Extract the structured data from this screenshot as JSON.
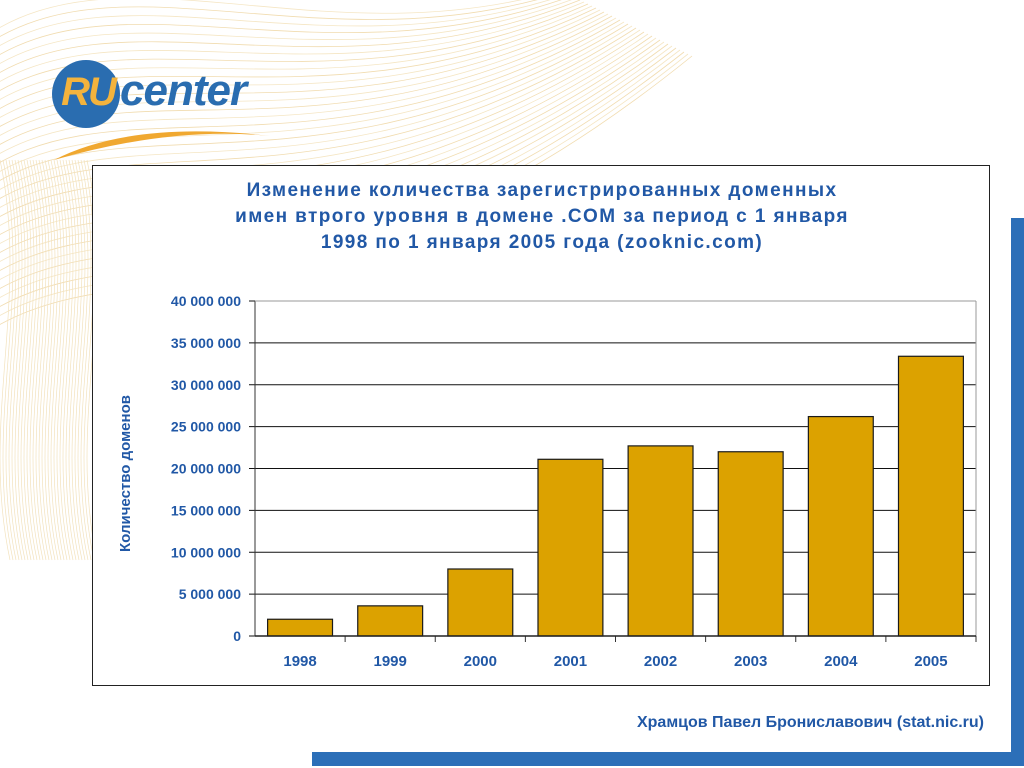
{
  "brand": {
    "logo_ru": "RU",
    "logo_word": "center",
    "colors": {
      "blue": "#2a6db0",
      "orange": "#f3b33d"
    }
  },
  "footer": {
    "author": "Храмцов Павел Брониславович (stat.nic.ru)"
  },
  "chart_data": {
    "type": "bar",
    "title": [
      "Изменение количества зарегистрированных доменных",
      "имен втрого уровня в домене .COM за период с 1 января",
      "1998 по 1 января 2005 года (zooknic.com)"
    ],
    "xlabel": "",
    "ylabel": "Количество доменов",
    "categories": [
      "1998",
      "1999",
      "2000",
      "2001",
      "2002",
      "2003",
      "2004",
      "2005"
    ],
    "values": [
      2000000,
      3600000,
      8000000,
      21100000,
      22700000,
      22000000,
      26200000,
      33400000
    ],
    "ylim": [
      0,
      40000000
    ],
    "yticks": [
      0,
      5000000,
      10000000,
      15000000,
      20000000,
      25000000,
      30000000,
      35000000,
      40000000
    ],
    "ytick_labels": [
      "0",
      "5 000 000",
      "10 000 000",
      "15 000 000",
      "20 000 000",
      "25 000 000",
      "30 000 000",
      "35 000 000",
      "40 000 000"
    ],
    "grid": true,
    "legend": "none",
    "colors": {
      "bar": "#dca200",
      "bar_edge": "#1a1a1a",
      "text": "#2158a6",
      "grid": "#111111"
    }
  }
}
